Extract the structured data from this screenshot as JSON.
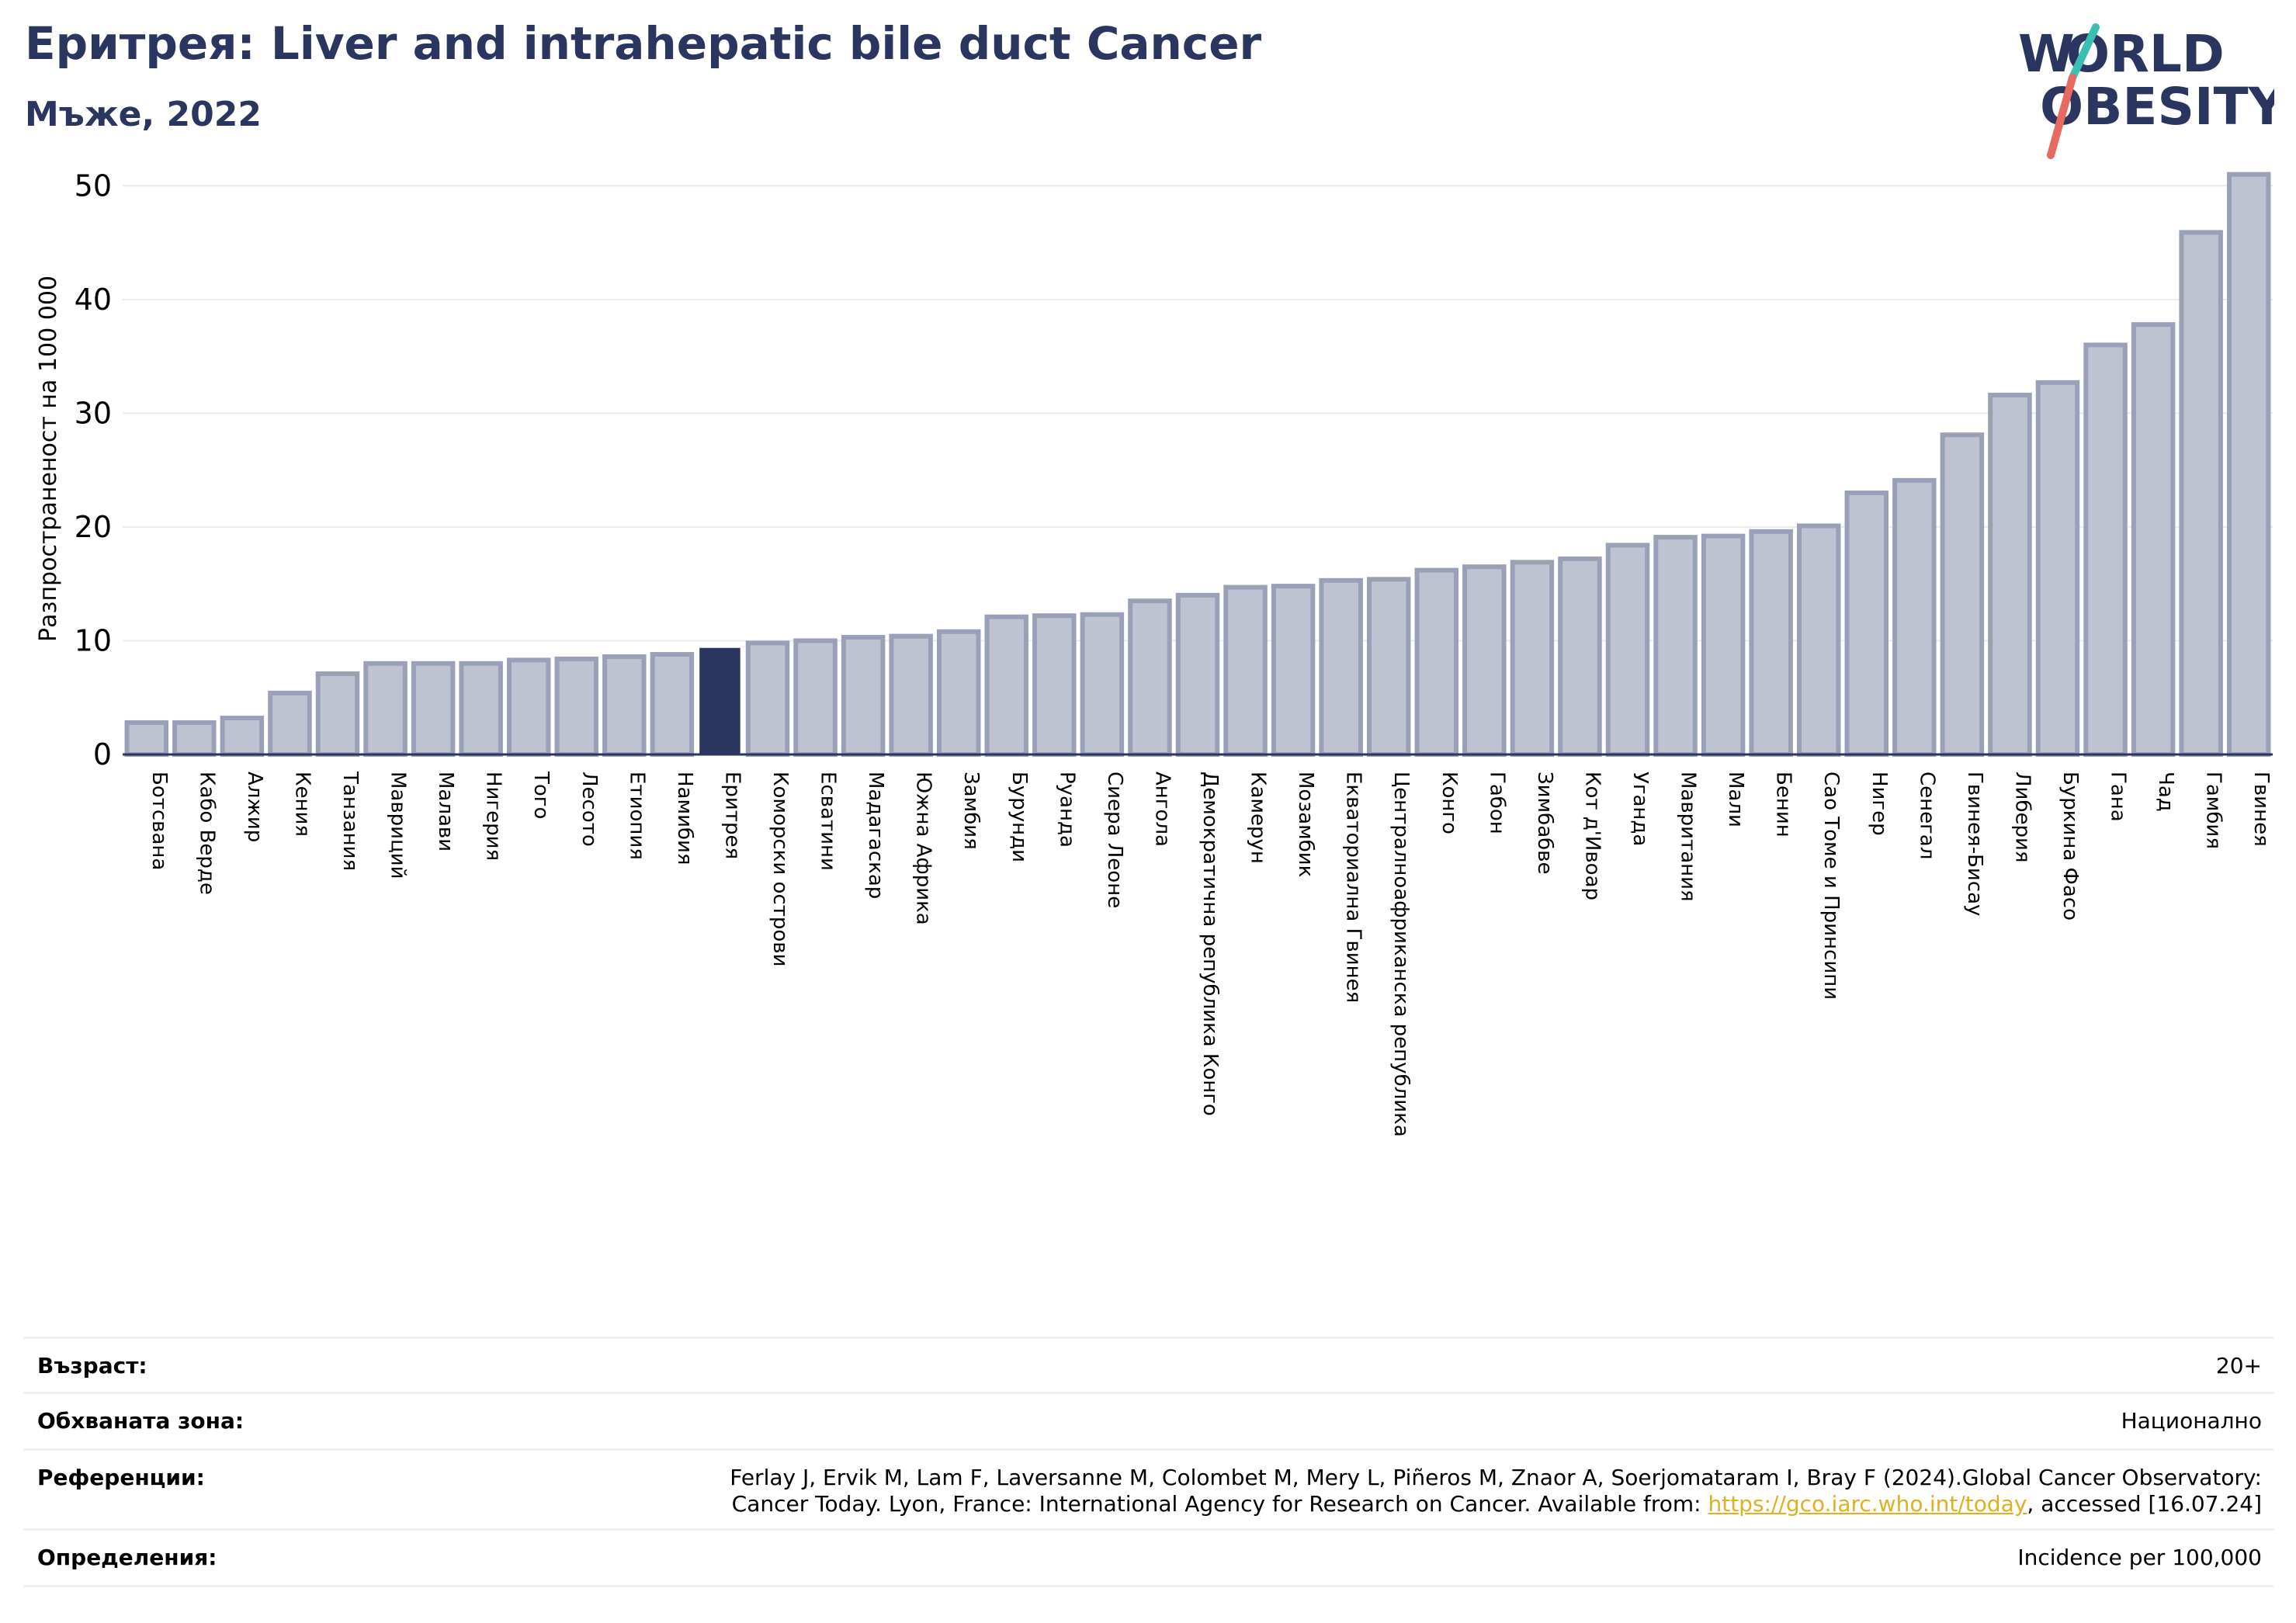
{
  "header": {
    "title": "Еритрея: Liver and intrahepatic bile duct Cancer",
    "subtitle": "Мъже, 2022"
  },
  "logo": {
    "line1": "WORLD",
    "line2": "OBESITY"
  },
  "colors": {
    "bar": "#bfc3d1",
    "bar_edge": "#9aa0b8",
    "highlight": "#2b3660",
    "title": "#2b3660",
    "grid": "#e8eaf0",
    "logo_teal": "#3bbfb3",
    "logo_coral": "#e8695d"
  },
  "chart_data": {
    "type": "bar",
    "ylabel": "Разпространеност  на 100 000",
    "xlabel": "",
    "ylim": [
      0,
      52
    ],
    "yticks": [
      0,
      10,
      20,
      30,
      40,
      50
    ],
    "grid": true,
    "highlight_category": "Еритрея",
    "categories": [
      "Ботсвана",
      "Кабо Верде",
      "Алжир",
      "Кения",
      "Танзания",
      "Мавриций",
      "Малави",
      "Нигерия",
      "Того",
      "Лесото",
      "Етиопия",
      "Намибия",
      "Еритрея",
      "Коморски острови",
      "Есватини",
      "Мадагаскар",
      "Южна Африка",
      "Замбия",
      "Бурунди",
      "Руанда",
      "Сиера Леоне",
      "Ангола",
      "Демократична република Конго",
      "Камерун",
      "Мозамбик",
      "Екваториална Гвинея",
      "Централноафриканска република",
      "Конго",
      "Габон",
      "Зимбабве",
      "Кот д'Ивоар",
      "Уганда",
      "Мавритания",
      "Мали",
      "Бенин",
      "Сао Томе и Принсипи",
      "Нигер",
      "Сенегал",
      "Гвинея-Бисау",
      "Либерия",
      "Буркина Фасо",
      "Гана",
      "Чад",
      "Гамбия",
      "Гвинея"
    ],
    "values": [
      2.8,
      2.8,
      3.2,
      5.4,
      7.1,
      8.0,
      8.0,
      8.0,
      8.3,
      8.4,
      8.6,
      8.8,
      9.3,
      9.8,
      10.0,
      10.3,
      10.4,
      10.8,
      12.1,
      12.2,
      12.3,
      13.5,
      14.0,
      14.7,
      14.8,
      15.3,
      15.4,
      16.2,
      16.5,
      16.9,
      17.2,
      18.4,
      19.1,
      19.2,
      19.6,
      20.1,
      23.0,
      24.1,
      28.1,
      31.6,
      32.7,
      36.0,
      37.8,
      45.9,
      51.0
    ]
  },
  "footer": {
    "age_label": "Възраст:",
    "age_value": "20+",
    "area_label": "Обхваната зона:",
    "area_value": "Национално",
    "refs_label": "Референции:",
    "refs_line1": "Ferlay J, Ervik M, Lam F, Laversanne M, Colombet M, Mery L, Piñeros M, Znaor A, Soerjomataram I, Bray F (2024).Global Cancer Observatory:",
    "refs_line2_pre": "Cancer Today. Lyon, France: International Agency for Research on Cancer. Available from: ",
    "refs_link": "https://gco.iarc.who.int/today",
    "refs_line2_post": ", accessed [16.07.24]",
    "defs_label": "Определения:",
    "defs_value": "Incidence per 100,000"
  }
}
